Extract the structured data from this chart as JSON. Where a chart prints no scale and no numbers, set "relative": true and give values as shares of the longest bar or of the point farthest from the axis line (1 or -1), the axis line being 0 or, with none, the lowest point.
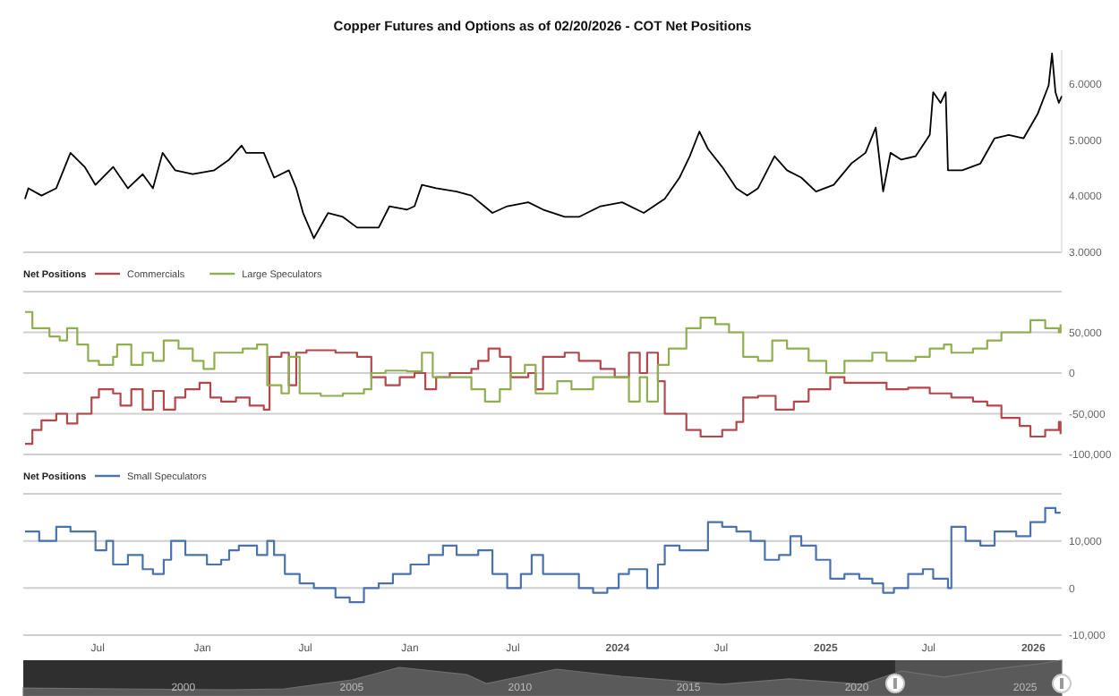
{
  "chart_data": [
    {
      "type": "line",
      "title": "Copper Futures and Options as of 02/20/2026 - COT Net Positions",
      "xlim": [
        "2021-02-20",
        "2026-02-20"
      ],
      "ylim": [
        3,
        6.6
      ],
      "yticks": [
        {
          "value": 3,
          "label": "3.0000"
        },
        {
          "value": 4,
          "label": "4.0000"
        },
        {
          "value": 5,
          "label": "5.0000"
        },
        {
          "value": 6,
          "label": "6.0000"
        }
      ],
      "tick_labels": "y",
      "grid": false,
      "series": [
        {
          "color": "#000000",
          "x": [
            "2021-02-23",
            "2021-03-01",
            "2021-03-24",
            "2021-04-19",
            "2021-05-14",
            "2021-06-08",
            "2021-06-27",
            "2021-07-28",
            "2021-08-23",
            "2021-09-18",
            "2021-10-06",
            "2021-10-23",
            "2021-11-14",
            "2021-12-15",
            "2022-01-22",
            "2022-02-17",
            "2022-03-11",
            "2022-03-19",
            "2022-04-19",
            "2022-05-07",
            "2022-06-02",
            "2022-06-15",
            "2022-06-27",
            "2022-07-16",
            "2022-08-10",
            "2022-09-05",
            "2022-09-30",
            "2022-11-07",
            "2022-11-26",
            "2022-12-27",
            "2023-01-09",
            "2023-01-22",
            "2023-02-16",
            "2023-03-24",
            "2023-04-19",
            "2023-05-26",
            "2023-06-21",
            "2023-07-28",
            "2023-08-23",
            "2023-09-30",
            "2023-10-25",
            "2023-12-02",
            "2024-01-09",
            "2024-02-16",
            "2024-03-24",
            "2024-04-19",
            "2024-05-07",
            "2024-05-24",
            "2024-06-08",
            "2024-07-03",
            "2024-07-28",
            "2024-08-16",
            "2024-09-04",
            "2024-10-03",
            "2024-10-25",
            "2024-11-19",
            "2024-12-15",
            "2025-01-15",
            "2025-02-15",
            "2025-03-12",
            "2025-03-30",
            "2025-04-12",
            "2025-04-25",
            "2025-05-14",
            "2025-06-08",
            "2025-07-03",
            "2025-07-09",
            "2025-07-22",
            "2025-07-31",
            "2025-08-04",
            "2025-08-29",
            "2025-09-30",
            "2025-10-25",
            "2025-11-19",
            "2025-12-15",
            "2026-01-09",
            "2026-01-28",
            "2026-02-03",
            "2026-02-09",
            "2026-02-15",
            "2026-02-20"
          ],
          "values": [
            3.95,
            4.14,
            4.01,
            4.14,
            4.77,
            4.52,
            4.2,
            4.52,
            4.14,
            4.39,
            4.14,
            4.77,
            4.46,
            4.39,
            4.46,
            4.65,
            4.9,
            4.77,
            4.77,
            4.33,
            4.46,
            4.14,
            3.7,
            3.25,
            3.7,
            3.63,
            3.44,
            3.44,
            3.82,
            3.76,
            3.82,
            4.2,
            4.14,
            4.08,
            4.01,
            3.7,
            3.82,
            3.89,
            3.76,
            3.63,
            3.63,
            3.82,
            3.89,
            3.7,
            3.95,
            4.33,
            4.71,
            5.15,
            4.84,
            4.52,
            4.14,
            4.01,
            4.14,
            4.71,
            4.46,
            4.33,
            4.08,
            4.2,
            4.58,
            4.77,
            5.22,
            4.08,
            4.77,
            4.65,
            4.71,
            5.09,
            5.85,
            5.66,
            5.85,
            4.46,
            4.46,
            4.58,
            5.03,
            5.09,
            5.03,
            5.47,
            5.97,
            6.54,
            5.85,
            5.66,
            5.78
          ]
        }
      ]
    },
    {
      "type": "step",
      "legend_title": "Net Positions",
      "legend": "top left",
      "grid": "y",
      "tick_labels": "y",
      "xlim": [
        "2021-02-20",
        "2026-02-20"
      ],
      "ylim": [
        -100000,
        100000
      ],
      "yticks": [
        {
          "value": -100000,
          "label": "-100,000"
        },
        {
          "value": -50000,
          "label": "-50,000"
        },
        0,
        {
          "value": 50000,
          "label": "50,000"
        },
        {
          "value": 100000,
          "label": null
        }
      ],
      "series": [
        {
          "name": "Commercials",
          "color": "#b5474b",
          "x": [
            "2021-02-23",
            "2021-03-08",
            "2021-03-24",
            "2021-04-19",
            "2021-05-08",
            "2021-05-26",
            "2021-06-20",
            "2021-07-03",
            "2021-07-28",
            "2021-08-10",
            "2021-08-29",
            "2021-09-18",
            "2021-10-06",
            "2021-10-25",
            "2021-11-14",
            "2021-12-02",
            "2021-12-27",
            "2022-01-15",
            "2022-02-03",
            "2022-03-01",
            "2022-03-25",
            "2022-04-19",
            "2022-04-29",
            "2022-05-20",
            "2022-06-02",
            "2022-06-15",
            "2022-07-03",
            "2022-08-23",
            "2022-09-30",
            "2022-10-25",
            "2022-11-19",
            "2022-12-14",
            "2023-01-09",
            "2023-01-28",
            "2023-02-16",
            "2023-03-12",
            "2023-04-19",
            "2023-05-01",
            "2023-05-19",
            "2023-06-08",
            "2023-06-27",
            "2023-07-28",
            "2023-08-10",
            "2023-08-23",
            "2023-09-30",
            "2023-10-25",
            "2023-12-02",
            "2023-12-27",
            "2024-01-21",
            "2024-02-09",
            "2024-02-22",
            "2024-03-12",
            "2024-03-24",
            "2024-05-01",
            "2024-05-26",
            "2024-07-03",
            "2024-07-28",
            "2024-08-09",
            "2024-09-04",
            "2024-10-05",
            "2024-11-06",
            "2024-12-02",
            "2025-01-09",
            "2025-02-03",
            "2025-03-12",
            "2025-04-18",
            "2025-05-26",
            "2025-07-03",
            "2025-08-10",
            "2025-09-17",
            "2025-10-12",
            "2025-11-06",
            "2025-12-08",
            "2025-12-27",
            "2026-01-22",
            "2026-02-15",
            "2026-02-18"
          ],
          "values": [
            -87000,
            -70000,
            -58000,
            -50000,
            -62000,
            -50000,
            -30000,
            -20000,
            -25000,
            -40000,
            -20000,
            -45000,
            -22000,
            -45000,
            -30000,
            -20000,
            -12000,
            -30000,
            -35000,
            -30000,
            -40000,
            -45000,
            20000,
            25000,
            -15000,
            25000,
            28000,
            25000,
            20000,
            -5000,
            -15000,
            -5000,
            0,
            -20000,
            -5000,
            0,
            5000,
            15000,
            30000,
            20000,
            -5000,
            0,
            -20000,
            20000,
            25000,
            15000,
            5000,
            -5000,
            25000,
            0,
            25000,
            -10000,
            -50000,
            -70000,
            -78000,
            -70000,
            -60000,
            -30000,
            -28000,
            -45000,
            -35000,
            -20000,
            -5000,
            -12000,
            -12000,
            -20000,
            -18000,
            -25000,
            -30000,
            -35000,
            -40000,
            -55000,
            -65000,
            -78000,
            -70000,
            -60000,
            -75000
          ]
        },
        {
          "name": "Large Speculators",
          "color": "#8fae4f",
          "x": [
            "2021-02-23",
            "2021-03-08",
            "2021-04-07",
            "2021-04-25",
            "2021-05-08",
            "2021-05-26",
            "2021-06-14",
            "2021-07-03",
            "2021-07-28",
            "2021-08-04",
            "2021-08-29",
            "2021-09-18",
            "2021-10-06",
            "2021-10-25",
            "2021-11-20",
            "2021-12-15",
            "2022-01-03",
            "2022-01-22",
            "2022-02-17",
            "2022-03-13",
            "2022-04-07",
            "2022-04-25",
            "2022-05-20",
            "2022-06-02",
            "2022-06-21",
            "2022-07-28",
            "2022-09-05",
            "2022-10-12",
            "2022-10-25",
            "2022-11-19",
            "2022-12-27",
            "2023-01-22",
            "2023-02-10",
            "2023-03-12",
            "2023-04-19",
            "2023-05-13",
            "2023-06-08",
            "2023-06-27",
            "2023-07-22",
            "2023-08-10",
            "2023-09-17",
            "2023-10-12",
            "2023-11-19",
            "2023-12-27",
            "2024-01-21",
            "2024-02-09",
            "2024-02-22",
            "2024-03-12",
            "2024-03-31",
            "2024-05-01",
            "2024-05-26",
            "2024-06-21",
            "2024-07-15",
            "2024-08-09",
            "2024-09-04",
            "2024-09-29",
            "2024-10-25",
            "2024-12-02",
            "2025-01-02",
            "2025-02-03",
            "2025-03-12",
            "2025-03-24",
            "2025-04-18",
            "2025-06-08",
            "2025-07-03",
            "2025-07-28",
            "2025-08-10",
            "2025-09-17",
            "2025-10-12",
            "2025-11-06",
            "2025-12-02",
            "2025-12-27",
            "2026-01-22",
            "2026-02-15",
            "2026-02-18"
          ],
          "values": [
            75000,
            55000,
            45000,
            40000,
            55000,
            35000,
            15000,
            10000,
            20000,
            35000,
            10000,
            25000,
            15000,
            40000,
            30000,
            15000,
            5000,
            25000,
            25000,
            30000,
            35000,
            -15000,
            -25000,
            20000,
            -25000,
            -28000,
            -25000,
            -20000,
            0,
            3000,
            2000,
            25000,
            -5000,
            -5000,
            -20000,
            -35000,
            -20000,
            0,
            10000,
            -25000,
            -10000,
            -20000,
            -5000,
            -5000,
            -35000,
            -5000,
            -35000,
            10000,
            30000,
            55000,
            68000,
            60000,
            50000,
            20000,
            15000,
            40000,
            30000,
            15000,
            0,
            15000,
            15000,
            25000,
            15000,
            20000,
            30000,
            35000,
            25000,
            30000,
            40000,
            50000,
            50000,
            65000,
            55000,
            50000,
            60000
          ]
        }
      ]
    },
    {
      "type": "step",
      "legend_title": "Net Positions",
      "legend": "top left",
      "grid": "y",
      "xlim": [
        "2021-02-20",
        "2026-02-20"
      ],
      "ylim": [
        -10000,
        20000
      ],
      "yticks": [
        {
          "value": -10000,
          "label": "-10,000"
        },
        0,
        {
          "value": 10000,
          "label": "10,000"
        },
        {
          "value": 20000,
          "label": null
        }
      ],
      "xticks": [
        {
          "value": "2021-07-01",
          "label": "Jul"
        },
        {
          "value": "2022-01-01",
          "label": "Jan"
        },
        {
          "value": "2022-07-01",
          "label": "Jul"
        },
        {
          "value": "2023-01-01",
          "label": "Jan"
        },
        {
          "value": "2023-07-01",
          "label": "Jul"
        },
        {
          "value": "2024-01-01",
          "label": "2024"
        },
        {
          "value": "2024-07-01",
          "label": "Jul"
        },
        {
          "value": "2025-01-01",
          "label": "2025"
        },
        {
          "value": "2025-07-01",
          "label": "Jul"
        },
        {
          "value": "2026-01-01",
          "label": "2026"
        }
      ],
      "series": [
        {
          "name": "Small Speculators",
          "color": "#4a72b0",
          "x": [
            "2021-02-23",
            "2021-03-20",
            "2021-04-19",
            "2021-05-14",
            "2021-06-14",
            "2021-06-27",
            "2021-07-16",
            "2021-07-28",
            "2021-08-23",
            "2021-09-18",
            "2021-10-06",
            "2021-10-25",
            "2021-11-07",
            "2021-11-26",
            "2021-12-02",
            "2022-01-09",
            "2022-02-03",
            "2022-02-17",
            "2022-03-06",
            "2022-04-07",
            "2022-04-25",
            "2022-05-07",
            "2022-05-26",
            "2022-06-21",
            "2022-07-16",
            "2022-08-23",
            "2022-09-17",
            "2022-10-12",
            "2022-11-07",
            "2022-12-02",
            "2023-01-02",
            "2023-02-03",
            "2023-02-28",
            "2023-03-24",
            "2023-05-01",
            "2023-05-26",
            "2023-06-21",
            "2023-07-15",
            "2023-08-03",
            "2023-08-23",
            "2023-09-30",
            "2023-10-25",
            "2023-11-19",
            "2023-12-14",
            "2024-01-03",
            "2024-01-21",
            "2024-02-22",
            "2024-03-12",
            "2024-03-24",
            "2024-04-19",
            "2024-05-20",
            "2024-06-08",
            "2024-07-03",
            "2024-07-28",
            "2024-08-22",
            "2024-09-16",
            "2024-10-11",
            "2024-10-31",
            "2024-11-19",
            "2024-12-15",
            "2025-01-09",
            "2025-02-03",
            "2025-03-01",
            "2025-03-24",
            "2025-04-12",
            "2025-05-01",
            "2025-05-26",
            "2025-06-21",
            "2025-07-09",
            "2025-08-04",
            "2025-08-10",
            "2025-09-04",
            "2025-09-30",
            "2025-10-25",
            "2025-11-19",
            "2025-12-02",
            "2025-12-27",
            "2026-01-22",
            "2026-02-09",
            "2026-02-18"
          ],
          "values": [
            12000,
            10000,
            13000,
            12000,
            12000,
            8000,
            10000,
            5000,
            7000,
            4000,
            3000,
            6000,
            10000,
            10000,
            7000,
            5000,
            6000,
            8000,
            9000,
            7000,
            10000,
            7000,
            3000,
            1000,
            0,
            -2000,
            -3000,
            0,
            1000,
            3000,
            5000,
            7000,
            9000,
            7000,
            8000,
            3000,
            0,
            3000,
            7000,
            3000,
            3000,
            0,
            -1000,
            0,
            3000,
            4000,
            0,
            5000,
            9000,
            8000,
            8000,
            14000,
            13000,
            12000,
            10000,
            6000,
            7000,
            11000,
            9000,
            6000,
            2000,
            3000,
            2000,
            1000,
            -1000,
            0,
            3000,
            4000,
            2000,
            0,
            13000,
            10000,
            9000,
            12000,
            12000,
            11000,
            14000,
            17000,
            16000,
            16000
          ]
        }
      ]
    },
    {
      "type": "area",
      "relative": true,
      "tick_labels": "x",
      "xlim": [
        "1995-04-01",
        "2026-02-01"
      ],
      "xticks": [
        {
          "value": "2000-01-01",
          "label": "2000"
        },
        {
          "value": "2005-01-01",
          "label": "2005"
        },
        {
          "value": "2010-01-01",
          "label": "2010"
        },
        {
          "value": "2015-01-01",
          "label": "2015"
        },
        {
          "value": "2020-01-01",
          "label": "2020"
        },
        {
          "value": "2025-01-01",
          "label": "2025"
        }
      ],
      "bands": [
        {
          "axis": "x",
          "from": "2021-02-20",
          "to": "2026-02-01",
          "color": "#6a6a6a"
        }
      ],
      "series": [
        {
          "color": "#5a5a5a",
          "x": [
            "1995-04-01",
            "1998-01-01",
            "2001-06-01",
            "2003-01-01",
            "2005-01-01",
            "2006-06-01",
            "2008-06-01",
            "2009-01-01",
            "2011-02-01",
            "2013-01-01",
            "2015-01-01",
            "2016-01-01",
            "2018-01-01",
            "2020-03-01",
            "2021-05-01",
            "2022-08-01",
            "2024-05-01",
            "2025-06-01",
            "2026-02-01"
          ],
          "values": [
            0.22,
            0.2,
            0.17,
            0.2,
            0.45,
            0.8,
            0.6,
            0.35,
            0.75,
            0.55,
            0.4,
            0.33,
            0.48,
            0.33,
            0.7,
            0.53,
            0.78,
            0.9,
            1
          ]
        }
      ]
    }
  ]
}
